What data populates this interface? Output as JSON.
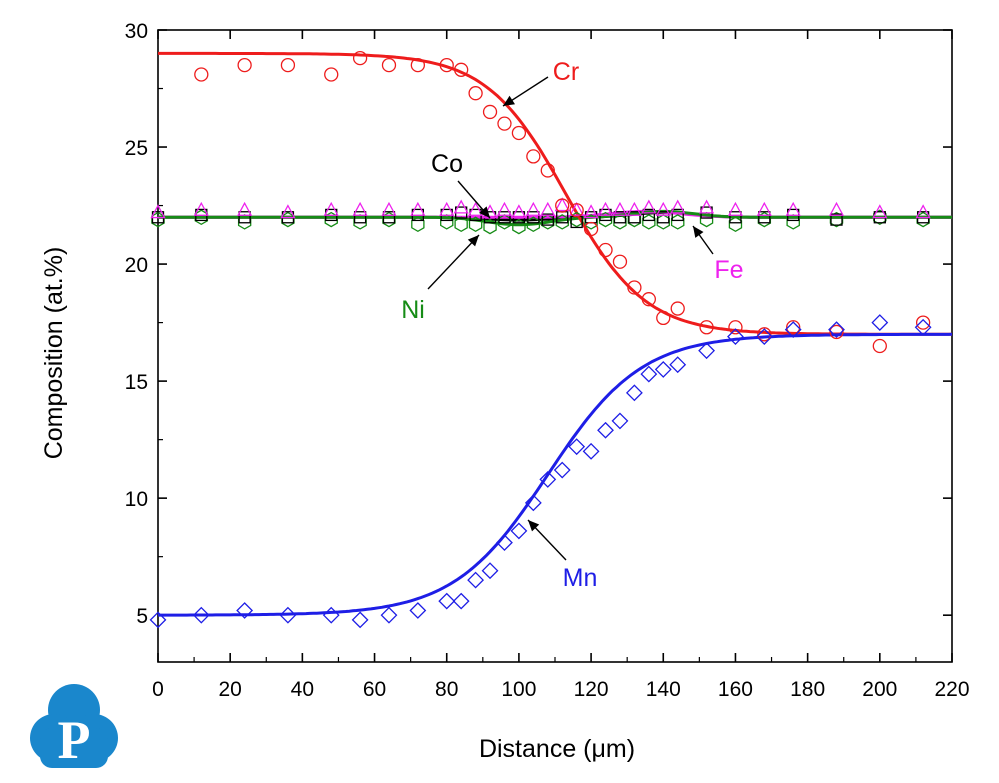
{
  "chart_data": {
    "type": "line",
    "xlabel": "Distance (μm)",
    "ylabel": "Composition (at.%)",
    "xlim": [
      0,
      220
    ],
    "ylim": [
      3,
      30
    ],
    "x_ticks": [
      0,
      20,
      40,
      60,
      80,
      100,
      120,
      140,
      160,
      180,
      200,
      220
    ],
    "y_ticks": [
      5,
      10,
      15,
      20,
      25,
      30
    ],
    "grid": false,
    "legend": "inline labels with arrows",
    "series": [
      {
        "name": "Cr",
        "color": "#ee1c1c",
        "marker": "circle",
        "fit": {
          "left": 29,
          "right": 17,
          "center": 113,
          "width": 11
        },
        "points": [
          [
            12,
            28.1
          ],
          [
            24,
            28.5
          ],
          [
            36,
            28.5
          ],
          [
            48,
            28.1
          ],
          [
            56,
            28.8
          ],
          [
            64,
            28.5
          ],
          [
            72,
            28.5
          ],
          [
            80,
            28.5
          ],
          [
            84,
            28.3
          ],
          [
            88,
            27.3
          ],
          [
            92,
            26.5
          ],
          [
            96,
            26.0
          ],
          [
            100,
            25.6
          ],
          [
            104,
            24.6
          ],
          [
            108,
            24.0
          ],
          [
            112,
            22.5
          ],
          [
            116,
            22.3
          ],
          [
            120,
            21.5
          ],
          [
            124,
            20.6
          ],
          [
            128,
            20.1
          ],
          [
            132,
            19.0
          ],
          [
            136,
            18.5
          ],
          [
            140,
            17.7
          ],
          [
            144,
            18.1
          ],
          [
            152,
            17.3
          ],
          [
            160,
            17.3
          ],
          [
            168,
            17.0
          ],
          [
            176,
            17.3
          ],
          [
            188,
            17.1
          ],
          [
            200,
            16.5
          ],
          [
            212,
            17.5
          ]
        ]
      },
      {
        "name": "Co",
        "color": "#000000",
        "marker": "square",
        "fit": {
          "left": 22.0,
          "right": 22.0
        },
        "points": [
          [
            0,
            22.0
          ],
          [
            12,
            22.1
          ],
          [
            24,
            22.0
          ],
          [
            36,
            22.0
          ],
          [
            48,
            22.1
          ],
          [
            56,
            22.0
          ],
          [
            64,
            22.0
          ],
          [
            72,
            22.1
          ],
          [
            80,
            22.1
          ],
          [
            84,
            22.2
          ],
          [
            88,
            22.1
          ],
          [
            92,
            22.0
          ],
          [
            96,
            22.0
          ],
          [
            100,
            22.0
          ],
          [
            104,
            22.0
          ],
          [
            108,
            21.9
          ],
          [
            112,
            22.0
          ],
          [
            116,
            21.8
          ],
          [
            120,
            22.0
          ],
          [
            124,
            22.1
          ],
          [
            128,
            22.0
          ],
          [
            132,
            22.0
          ],
          [
            136,
            22.1
          ],
          [
            140,
            22.0
          ],
          [
            144,
            22.1
          ],
          [
            152,
            22.2
          ],
          [
            160,
            22.0
          ],
          [
            168,
            22.0
          ],
          [
            176,
            22.1
          ],
          [
            188,
            21.9
          ],
          [
            200,
            22.0
          ],
          [
            212,
            22.0
          ]
        ]
      },
      {
        "name": "Fe",
        "color": "#ee22ee",
        "marker": "triangle",
        "fit": {
          "left": 22.0,
          "right": 22.0
        },
        "points": [
          [
            0,
            22.2
          ],
          [
            12,
            22.3
          ],
          [
            24,
            22.3
          ],
          [
            36,
            22.2
          ],
          [
            48,
            22.3
          ],
          [
            56,
            22.3
          ],
          [
            64,
            22.3
          ],
          [
            72,
            22.3
          ],
          [
            80,
            22.3
          ],
          [
            84,
            22.4
          ],
          [
            88,
            22.3
          ],
          [
            92,
            22.2
          ],
          [
            96,
            22.3
          ],
          [
            100,
            22.2
          ],
          [
            104,
            22.3
          ],
          [
            108,
            22.3
          ],
          [
            112,
            22.5
          ],
          [
            116,
            22.3
          ],
          [
            120,
            22.2
          ],
          [
            124,
            22.3
          ],
          [
            128,
            22.3
          ],
          [
            132,
            22.3
          ],
          [
            136,
            22.4
          ],
          [
            140,
            22.3
          ],
          [
            144,
            22.4
          ],
          [
            152,
            22.4
          ],
          [
            160,
            22.3
          ],
          [
            168,
            22.3
          ],
          [
            176,
            22.3
          ],
          [
            188,
            22.3
          ],
          [
            200,
            22.2
          ],
          [
            212,
            22.2
          ]
        ]
      },
      {
        "name": "Ni",
        "color": "#168c16",
        "marker": "hexagon",
        "fit": {
          "left": 22.0,
          "right": 22.0
        },
        "points": [
          [
            0,
            21.9
          ],
          [
            12,
            22.0
          ],
          [
            24,
            21.8
          ],
          [
            36,
            21.9
          ],
          [
            48,
            21.9
          ],
          [
            56,
            21.8
          ],
          [
            64,
            21.9
          ],
          [
            72,
            21.7
          ],
          [
            80,
            21.8
          ],
          [
            84,
            21.7
          ],
          [
            88,
            21.7
          ],
          [
            92,
            21.6
          ],
          [
            96,
            21.8
          ],
          [
            100,
            21.6
          ],
          [
            104,
            21.7
          ],
          [
            108,
            21.8
          ],
          [
            112,
            21.8
          ],
          [
            116,
            21.9
          ],
          [
            120,
            21.8
          ],
          [
            124,
            21.9
          ],
          [
            128,
            21.8
          ],
          [
            132,
            21.9
          ],
          [
            136,
            21.8
          ],
          [
            140,
            21.8
          ],
          [
            144,
            21.8
          ],
          [
            152,
            21.9
          ],
          [
            160,
            21.7
          ],
          [
            168,
            21.9
          ],
          [
            176,
            21.8
          ],
          [
            188,
            21.9
          ],
          [
            200,
            22.0
          ],
          [
            212,
            21.9
          ]
        ]
      },
      {
        "name": "Mn",
        "color": "#1e1ee6",
        "marker": "diamond",
        "fit": {
          "left": 5,
          "right": 17,
          "center": 108,
          "width": 13
        },
        "points": [
          [
            0,
            4.8
          ],
          [
            12,
            5.0
          ],
          [
            24,
            5.2
          ],
          [
            36,
            5.0
          ],
          [
            48,
            5.0
          ],
          [
            56,
            4.8
          ],
          [
            64,
            5.0
          ],
          [
            72,
            5.2
          ],
          [
            80,
            5.6
          ],
          [
            84,
            5.6
          ],
          [
            88,
            6.5
          ],
          [
            92,
            6.9
          ],
          [
            96,
            8.1
          ],
          [
            100,
            8.6
          ],
          [
            104,
            9.8
          ],
          [
            108,
            10.8
          ],
          [
            112,
            11.2
          ],
          [
            116,
            12.2
          ],
          [
            120,
            12.0
          ],
          [
            124,
            12.9
          ],
          [
            128,
            13.3
          ],
          [
            132,
            14.5
          ],
          [
            136,
            15.3
          ],
          [
            140,
            15.5
          ],
          [
            144,
            15.7
          ],
          [
            152,
            16.3
          ],
          [
            160,
            16.9
          ],
          [
            168,
            16.9
          ],
          [
            176,
            17.2
          ],
          [
            188,
            17.2
          ],
          [
            200,
            17.5
          ],
          [
            212,
            17.3
          ]
        ]
      }
    ]
  },
  "logo": {
    "letter": "P",
    "color": "#1a87cc"
  }
}
